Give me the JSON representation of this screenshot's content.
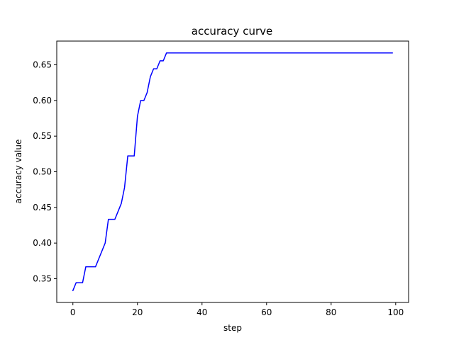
{
  "chart_data": {
    "type": "line",
    "title": "accuracy curve",
    "xlabel": "step",
    "ylabel": "accuracy value",
    "xlim": [
      -5,
      104
    ],
    "ylim": [
      0.3167,
      0.6833
    ],
    "xticks": [
      0,
      20,
      40,
      60,
      80,
      100
    ],
    "yticks": [
      0.35,
      0.4,
      0.45,
      0.5,
      0.55,
      0.6,
      0.65
    ],
    "xtick_labels": [
      "0",
      "20",
      "40",
      "60",
      "80",
      "100"
    ],
    "ytick_labels": [
      "0.35",
      "0.40",
      "0.45",
      "0.50",
      "0.55",
      "0.60",
      "0.65"
    ],
    "grid": false,
    "series": [
      {
        "color": "#0000ff",
        "x": [
          0,
          1,
          2,
          3,
          4,
          5,
          6,
          7,
          8,
          9,
          10,
          11,
          12,
          13,
          14,
          15,
          16,
          17,
          18,
          19,
          20,
          21,
          22,
          23,
          24,
          25,
          26,
          27,
          28,
          29,
          30,
          40,
          50,
          60,
          70,
          80,
          90,
          99
        ],
        "y": [
          0.3333,
          0.3444,
          0.3444,
          0.3444,
          0.3667,
          0.3667,
          0.3667,
          0.3667,
          0.3778,
          0.3889,
          0.4,
          0.4333,
          0.4333,
          0.4333,
          0.4444,
          0.4556,
          0.4778,
          0.5222,
          0.5222,
          0.5222,
          0.5778,
          0.6,
          0.6,
          0.6111,
          0.6333,
          0.6444,
          0.6444,
          0.6556,
          0.6556,
          0.6667,
          0.6667,
          0.6667,
          0.6667,
          0.6667,
          0.6667,
          0.6667,
          0.6667,
          0.6667
        ]
      }
    ]
  }
}
